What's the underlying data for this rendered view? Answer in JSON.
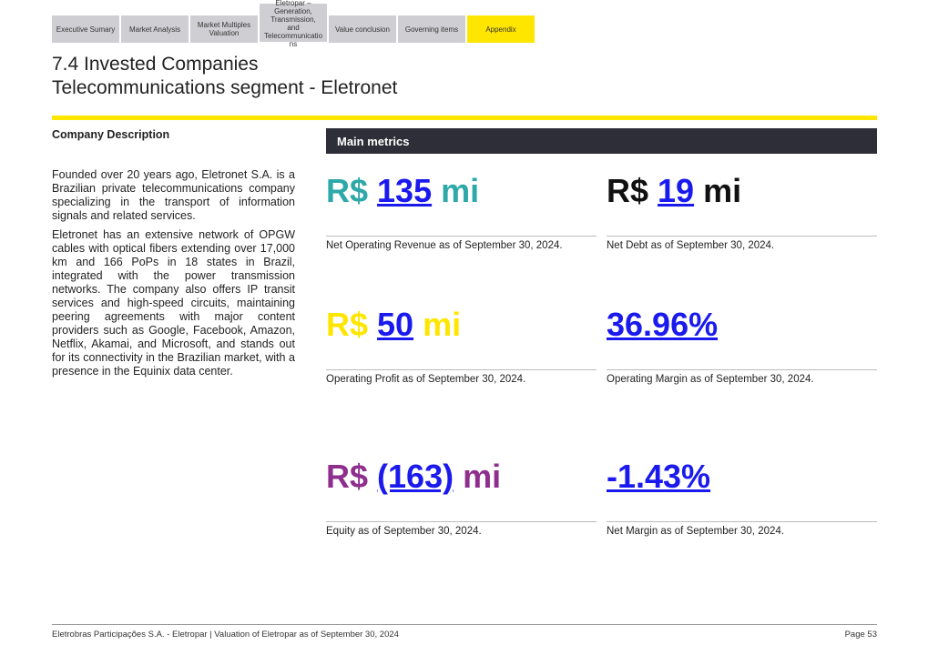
{
  "tabs": [
    {
      "label": "Executive Sumary"
    },
    {
      "label": "Market Analysis"
    },
    {
      "label": "Market Multiples Valuation"
    },
    {
      "lines": [
        "Eletropar –",
        "Generation,",
        "Transmission,",
        "and",
        "Telecommunicatio",
        "ns"
      ]
    },
    {
      "label": "Value conclusion"
    },
    {
      "label": "Governing items"
    },
    {
      "label": "Appendix"
    }
  ],
  "title": {
    "line1": "7.4 Invested Companies",
    "line2": "Telecommunications segment - Eletronet"
  },
  "description": {
    "heading": "Company Description",
    "paragraphs": [
      "Founded over 20 years ago, Eletronet S.A. is a Brazilian private telecommunications company specializing in the transport of information signals and related services.",
      "Eletronet has an extensive network of OPGW cables with optical fibers extending over 17,000 km and 166 PoPs in 18 states in Brazil, integrated with the power transmission networks. The company also offers IP transit services and high-speed circuits, maintaining peering agreements with major content providers such as Google, Facebook, Amazon, Netflix, Akamai, and Microsoft, and stands out for its connectivity in the Brazilian market, with a presence in the Equinix data center."
    ]
  },
  "metrics": {
    "heading": "Main metrics",
    "items": [
      {
        "prefix": "R$ ",
        "value": "135",
        "suffix": " mi",
        "caption": "Net Operating Revenue as of September 30, 2024.",
        "color": "#2ea8a8"
      },
      {
        "prefix": "R$ ",
        "value": "19",
        "suffix": " mi",
        "caption": "Net Debt as of September 30, 2024.",
        "color": "#111111"
      },
      {
        "prefix": "R$ ",
        "value": "50",
        "suffix": " mi",
        "caption": "Operating Profit as of September 30, 2024.",
        "color": "#ffe600"
      },
      {
        "prefix": "",
        "value": "36.96%",
        "suffix": "",
        "caption": "Operating Margin as of September 30, 2024.",
        "color": "#1a1aee"
      },
      {
        "prefix": "R$ ",
        "value": "(163)",
        "suffix": " mi",
        "caption": "Equity as of September 30, 2024.",
        "color": "#8e2f8e"
      },
      {
        "prefix": "",
        "value": "-1.43%",
        "suffix": "",
        "caption": "Net Margin as of September 30, 2024.",
        "color": "#1a1aee"
      }
    ]
  },
  "footer": {
    "left": "Eletrobras Participações S.A. - Eletropar | Valuation of Eletropar as of September 30, 2024",
    "right": "Page 53"
  }
}
